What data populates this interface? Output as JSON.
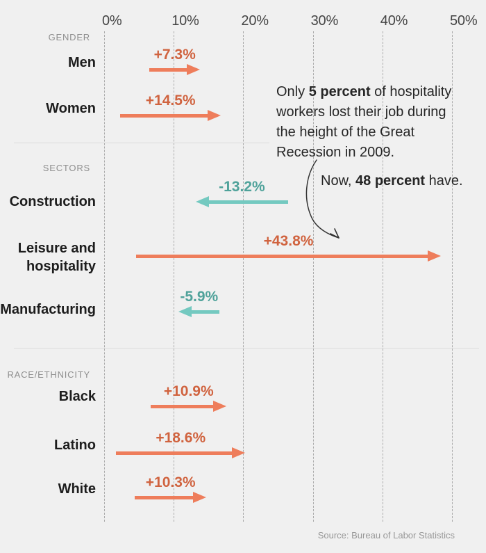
{
  "chart_data": {
    "type": "arrow-change",
    "x_axis": {
      "tick_labels": [
        "0%",
        "10%",
        "20%",
        "30%",
        "40%",
        "50%"
      ],
      "tick_values": [
        0,
        10,
        20,
        30,
        40,
        50
      ],
      "min": 0,
      "max": 50,
      "unit": "percent",
      "gridlines": "vertical-dashed"
    },
    "groups": [
      {
        "label": "GENDER",
        "rows": [
          {
            "label": "Men",
            "change_label": "+7.3%",
            "change": 7.3,
            "from": 6.5,
            "to": 13.8,
            "direction": "increase"
          },
          {
            "label": "Women",
            "change_label": "+14.5%",
            "change": 14.5,
            "from": 2.3,
            "to": 16.8,
            "direction": "increase"
          }
        ]
      },
      {
        "label": "SECTORS",
        "rows": [
          {
            "label": "Construction",
            "change_label": "-13.2%",
            "change": -13.2,
            "from": 26.4,
            "to": 13.2,
            "direction": "decrease"
          },
          {
            "label": "Leisure and hospitality",
            "change_label": "+43.8%",
            "change": 43.8,
            "from": 4.6,
            "to": 48.4,
            "direction": "increase"
          },
          {
            "label": "Manufacturing",
            "change_label": "-5.9%",
            "change": -5.9,
            "from": 16.6,
            "to": 10.7,
            "direction": "decrease"
          }
        ]
      },
      {
        "label": "RACE/ETHNICITY",
        "rows": [
          {
            "label": "Black",
            "change_label": "+10.9%",
            "change": 10.9,
            "from": 6.7,
            "to": 17.6,
            "direction": "increase"
          },
          {
            "label": "Latino",
            "change_label": "+18.6%",
            "change": 18.6,
            "from": 1.7,
            "to": 20.3,
            "direction": "increase"
          },
          {
            "label": "White",
            "change_label": "+10.3%",
            "change": 10.3,
            "from": 4.4,
            "to": 14.7,
            "direction": "increase"
          }
        ]
      }
    ]
  },
  "annotation": {
    "lines": [
      [
        {
          "t": "Only ",
          "b": false
        },
        {
          "t": "5 percent",
          "b": true
        },
        {
          "t": " of hospitality",
          "b": false
        }
      ],
      [
        {
          "t": "workers lost their job during",
          "b": false
        }
      ],
      [
        {
          "t": "the height of the Great",
          "b": false
        }
      ],
      [
        {
          "t": "Recession in 2009.",
          "b": false
        }
      ]
    ],
    "now_line": [
      {
        "t": "Now, ",
        "b": false
      },
      {
        "t": "48 percent",
        "b": true
      },
      {
        "t": " have.",
        "b": false
      }
    ]
  },
  "source": "Source: Bureau of Labor Statistics",
  "colors": {
    "background": "#f0f0f0",
    "increase_arrow": "#ee7d5b",
    "increase_label": "#d0633f",
    "decrease_arrow": "#74c9c0",
    "decrease_label": "#4fa29a"
  }
}
